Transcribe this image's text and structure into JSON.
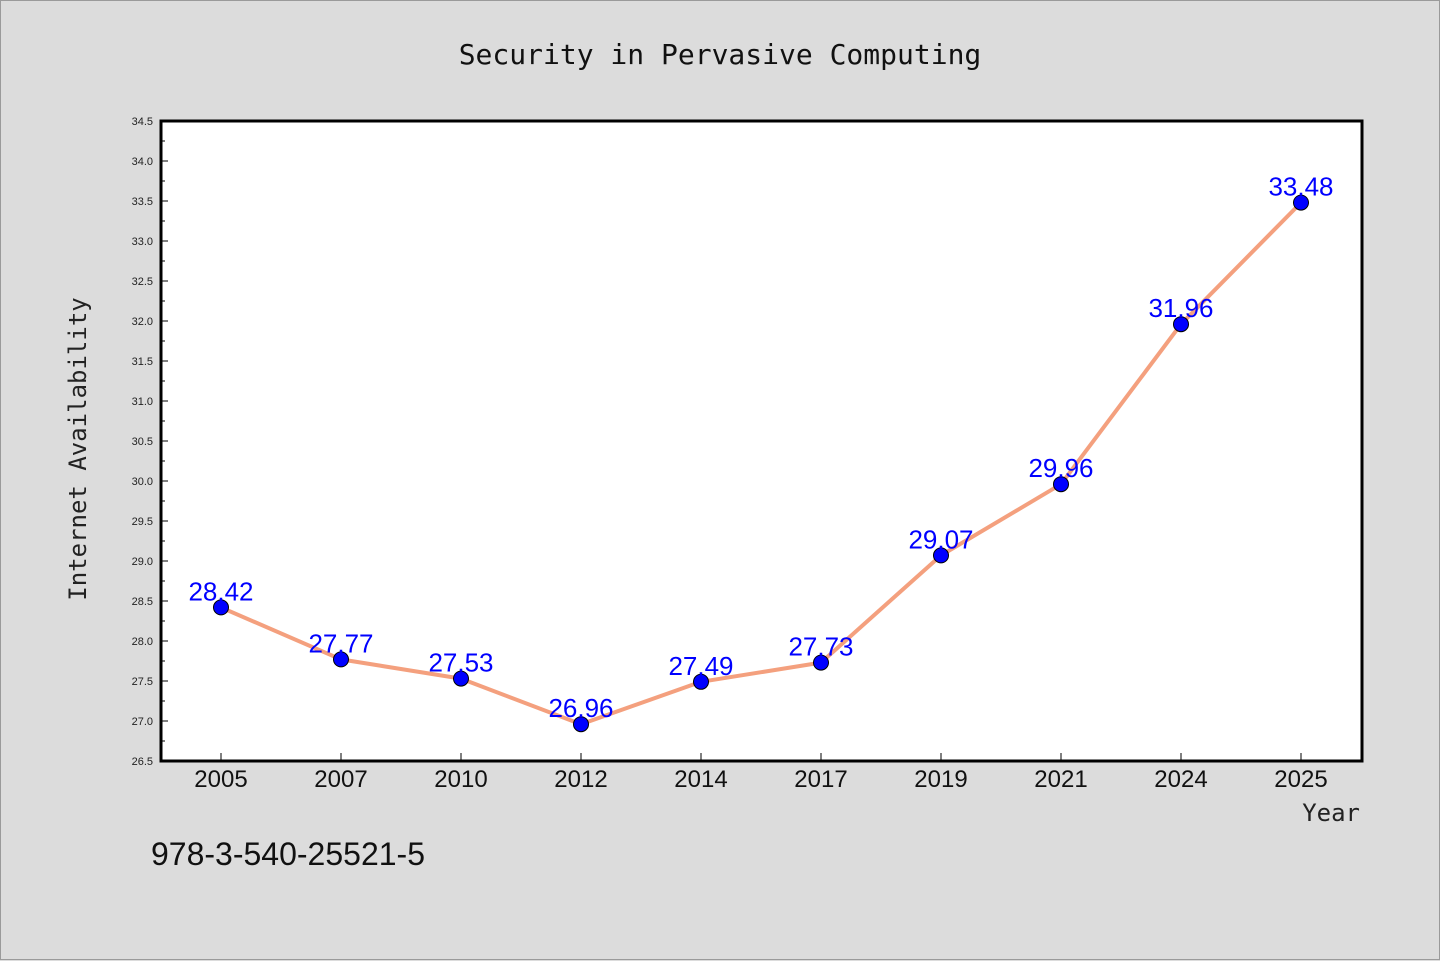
{
  "footer": {
    "isbn": "978-3-540-25521-5"
  },
  "chart_data": {
    "type": "line",
    "title": "Security in Pervasive Computing",
    "xlabel": "Year",
    "ylabel": "Internet Availability",
    "categories": [
      "2005",
      "2007",
      "2010",
      "2012",
      "2014",
      "2017",
      "2019",
      "2021",
      "2024",
      "2025"
    ],
    "series": [
      {
        "values": [
          28.42,
          27.77,
          27.53,
          26.96,
          27.49,
          27.73,
          29.07,
          29.96,
          31.96,
          33.48
        ]
      }
    ],
    "ylim": [
      26.5,
      34.5
    ],
    "yticks": [
      "26.5",
      "27.0",
      "27.5",
      "28.0",
      "28.5",
      "29.0",
      "29.5",
      "30.0",
      "30.5",
      "31.0",
      "31.5",
      "32.0",
      "32.5",
      "33.0",
      "33.5",
      "34.0",
      "34.5"
    ],
    "grid": false,
    "data_labels": true,
    "colors": {
      "line": "#f4a07e",
      "marker": "#0000ff",
      "label": "#0000ff",
      "plot_bg": "#ffffff",
      "page_bg": "#dcdcdc"
    }
  }
}
